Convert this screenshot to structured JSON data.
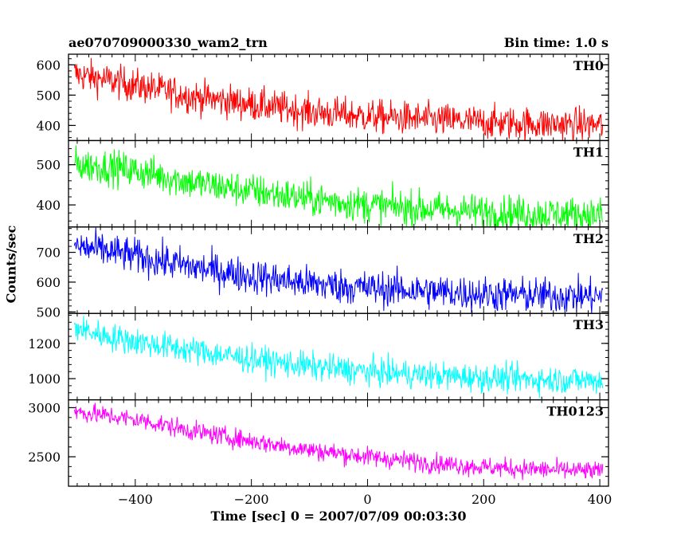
{
  "chart_data": {
    "type": "line",
    "title": "ae070709000330_wam2_trn",
    "subtitle": "Bin time: 1.0 s",
    "xlabel": "Time [sec] 0 = 2007/07/09 00:03:30",
    "ylabel": "Counts/sec",
    "xlim": [
      -515,
      415
    ],
    "x_ticks": [
      -400,
      -200,
      0,
      200,
      400
    ],
    "x_sampling": {
      "start": -505,
      "end": 405,
      "step": 1
    },
    "panels": [
      {
        "name": "TH0",
        "color": "#ff0000",
        "ylim": [
          350,
          635
        ],
        "y_ticks": [
          400,
          500,
          600
        ],
        "trend": [
          [
            -505,
            570
          ],
          [
            -450,
            550
          ],
          [
            -380,
            525
          ],
          [
            -300,
            495
          ],
          [
            -200,
            470
          ],
          [
            -100,
            445
          ],
          [
            0,
            430
          ],
          [
            100,
            420
          ],
          [
            200,
            410
          ],
          [
            300,
            405
          ],
          [
            405,
            402
          ]
        ],
        "noise": 28
      },
      {
        "name": "TH1",
        "color": "#00ff00",
        "ylim": [
          345,
          560
        ],
        "y_ticks": [
          400,
          500
        ],
        "trend": [
          [
            -505,
            500
          ],
          [
            -450,
            495
          ],
          [
            -380,
            480
          ],
          [
            -300,
            455
          ],
          [
            -200,
            435
          ],
          [
            -100,
            415
          ],
          [
            0,
            400
          ],
          [
            100,
            390
          ],
          [
            200,
            383
          ],
          [
            300,
            378
          ],
          [
            405,
            375
          ]
        ],
        "noise": 22
      },
      {
        "name": "TH2",
        "color": "#0000ff",
        "ylim": [
          495,
          785
        ],
        "y_ticks": [
          500,
          600,
          700
        ],
        "trend": [
          [
            -505,
            720
          ],
          [
            -450,
            705
          ],
          [
            -380,
            680
          ],
          [
            -300,
            650
          ],
          [
            -200,
            620
          ],
          [
            -100,
            595
          ],
          [
            0,
            580
          ],
          [
            100,
            570
          ],
          [
            200,
            560
          ],
          [
            300,
            555
          ],
          [
            405,
            552
          ]
        ],
        "noise": 30
      },
      {
        "name": "TH3",
        "color": "#00ffff",
        "ylim": [
          880,
          1370
        ],
        "y_ticks": [
          1000,
          1200
        ],
        "trend": [
          [
            -505,
            1290
          ],
          [
            -450,
            1240
          ],
          [
            -380,
            1200
          ],
          [
            -300,
            1160
          ],
          [
            -200,
            1110
          ],
          [
            -100,
            1070
          ],
          [
            0,
            1040
          ],
          [
            100,
            1020
          ],
          [
            200,
            1005
          ],
          [
            300,
            995
          ],
          [
            405,
            990
          ]
        ],
        "noise": 40
      },
      {
        "name": "TH0123",
        "color": "#ff00ff",
        "ylim": [
          2200,
          3080
        ],
        "y_ticks": [
          2500,
          3000
        ],
        "trend": [
          [
            -505,
            2960
          ],
          [
            -450,
            2920
          ],
          [
            -380,
            2860
          ],
          [
            -300,
            2760
          ],
          [
            -200,
            2660
          ],
          [
            -100,
            2570
          ],
          [
            0,
            2500
          ],
          [
            100,
            2440
          ],
          [
            200,
            2395
          ],
          [
            300,
            2370
          ],
          [
            405,
            2350
          ]
        ],
        "noise": 50
      }
    ]
  }
}
